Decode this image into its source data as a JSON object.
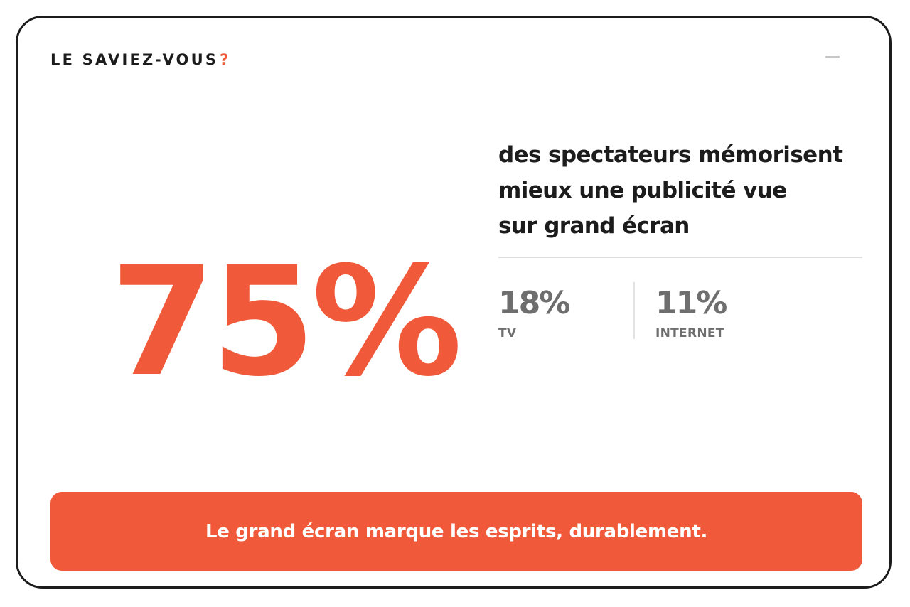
{
  "header": {
    "title": "LE SAVIEZ-VOUS",
    "title_mark": "?"
  },
  "main_stat": {
    "value": "75%"
  },
  "statement": {
    "lines": [
      "des spectateurs mémorisent",
      "mieux une publicité vue",
      "sur grand écran"
    ]
  },
  "comparisons": [
    {
      "value": "18%",
      "label": "TV"
    },
    {
      "value": "11%",
      "label": "INTERNET"
    }
  ],
  "banner": {
    "text": "Le grand écran marque les esprits, durablement."
  },
  "colors": {
    "accent": "#f05a3a",
    "text_dark": "#1c1c1c",
    "text_muted": "#6e6e6e",
    "border": "#1c1c1c"
  }
}
